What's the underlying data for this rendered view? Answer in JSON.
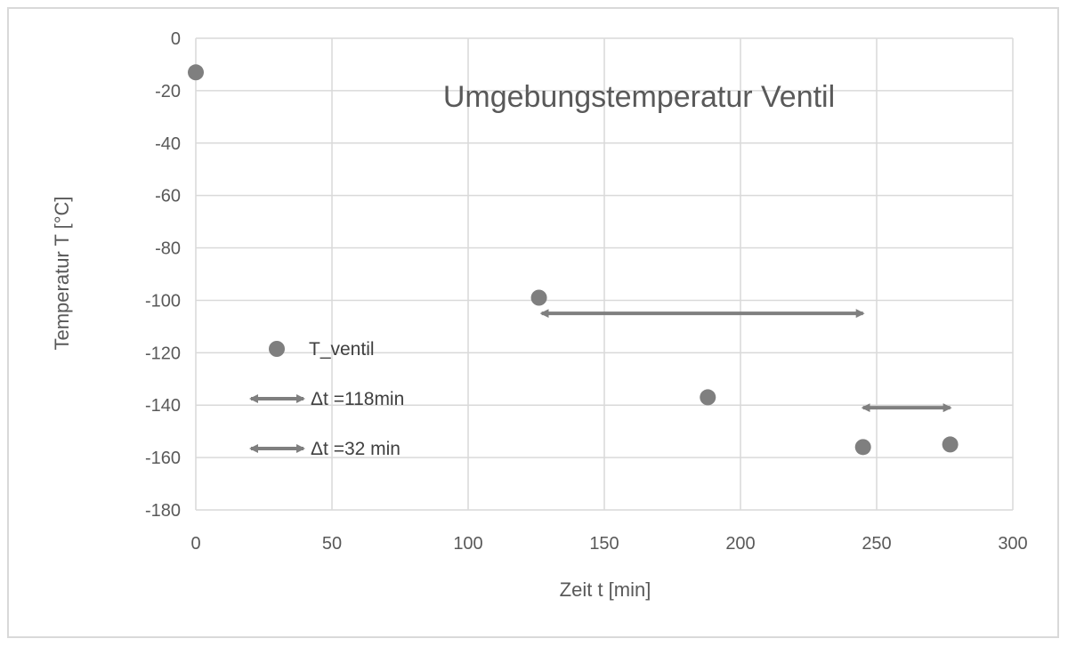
{
  "chart_data": {
    "type": "scatter",
    "title": "Umgebungstemperatur Ventil",
    "xlabel": "Zeit t [min]",
    "ylabel": "Temperatur T [°C]",
    "xlim": [
      0,
      300
    ],
    "ylim": [
      -180,
      0
    ],
    "x_ticks": [
      0,
      50,
      100,
      150,
      200,
      250,
      300
    ],
    "y_ticks": [
      0,
      -20,
      -40,
      -60,
      -80,
      -100,
      -120,
      -140,
      -160,
      -180
    ],
    "grid": true,
    "series": [
      {
        "name": "T_ventil",
        "points": [
          {
            "x": 0,
            "y": -13
          },
          {
            "x": 126,
            "y": -99
          },
          {
            "x": 188,
            "y": -137
          },
          {
            "x": 245,
            "y": -156
          },
          {
            "x": 277,
            "y": -155
          }
        ]
      }
    ],
    "intervals": [
      {
        "name": "Δt =118min",
        "x_start": 127,
        "x_end": 245,
        "y": -105
      },
      {
        "name": "Δt =32 min",
        "x_start": 245,
        "x_end": 277,
        "y": -141
      }
    ],
    "legend_position": "left-center",
    "colors": {
      "marker": "#7f7f7f",
      "grid": "#d9d9d9",
      "text": "#595959"
    }
  }
}
